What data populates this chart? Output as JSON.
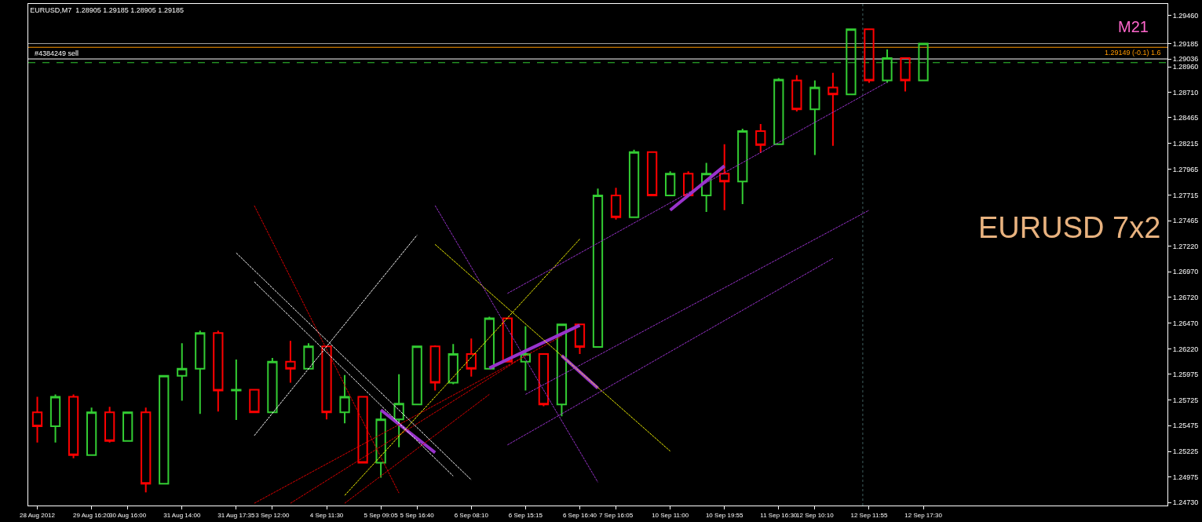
{
  "chart_data": {
    "type": "candlestick",
    "title": "EURUSD,M7  1.28905 1.29185 1.28905 1.29185",
    "categories": [
      "28 Aug 2012",
      null,
      null,
      "29 Aug 16:20",
      null,
      "30 Aug 16:00",
      null,
      null,
      "31 Aug 14:00",
      null,
      null,
      "31 Aug 17:35",
      null,
      "3 Sep 12:00",
      null,
      null,
      "4 Sep 11:30",
      null,
      null,
      "5 Sep 09:05",
      null,
      "5 Sep 16:40",
      null,
      null,
      "6 Sep 08:10",
      null,
      null,
      "6 Sep 15:15",
      null,
      null,
      "6 Sep 16:40",
      null,
      "7 Sep 16:05",
      null,
      null,
      "10 Sep 11:00",
      null,
      null,
      "10 Sep 19:55",
      null,
      null,
      "11 Sep 16:30",
      null,
      "12 Sep 10:10",
      null,
      null,
      "12 Sep 11:55",
      null,
      null,
      "12 Sep 17:30",
      null,
      null,
      null,
      null,
      null,
      null,
      null,
      null,
      null,
      null,
      null,
      null,
      null
    ],
    "ohlc": [
      [
        1.25605,
        1.25756,
        1.25311,
        1.25469
      ],
      [
        1.25469,
        1.25779,
        1.25311,
        1.25756
      ],
      [
        1.25756,
        1.25779,
        1.2516,
        1.2519
      ],
      [
        1.2519,
        1.2565,
        1.25183,
        1.25605
      ],
      [
        1.25605,
        1.25658,
        1.25311,
        1.25326
      ],
      [
        1.25326,
        1.25605,
        1.25326,
        1.25605
      ],
      [
        1.25605,
        1.2565,
        1.24828,
        1.24911
      ],
      [
        1.24911,
        1.2596,
        1.24911,
        1.2596
      ],
      [
        1.2596,
        1.26276,
        1.25718,
        1.26028
      ],
      [
        1.26028,
        1.26397,
        1.2559,
        1.26375
      ],
      [
        1.26375,
        1.26397,
        1.25613,
        1.25816
      ],
      [
        1.25816,
        1.26118,
        1.2553,
        1.25824
      ],
      [
        1.25824,
        1.25824,
        1.25605,
        1.25605
      ],
      [
        1.25605,
        1.26133,
        1.25605,
        1.26096
      ],
      [
        1.26096,
        1.26299,
        1.25892,
        1.26028
      ],
      [
        1.26028,
        1.26276,
        1.26028,
        1.26246
      ],
      [
        1.26246,
        1.26246,
        1.25537,
        1.25605
      ],
      [
        1.25605,
        1.25967,
        1.25499,
        1.25756
      ],
      [
        1.25756,
        1.25756,
        1.25115,
        1.25115
      ],
      [
        1.25115,
        1.25613,
        1.24971,
        1.25537
      ],
      [
        1.25537,
        1.25975,
        1.25266,
        1.25688
      ],
      [
        1.25681,
        1.26246,
        1.25681,
        1.26246
      ],
      [
        1.26246,
        1.26254,
        1.25816,
        1.25892
      ],
      [
        1.25892,
        1.26269,
        1.25877,
        1.26171
      ],
      [
        1.26171,
        1.26322,
        1.25952,
        1.26028
      ],
      [
        1.26028,
        1.26533,
        1.2602,
        1.26518
      ],
      [
        1.26518,
        1.26518,
        1.26096,
        1.26096
      ],
      [
        1.26096,
        1.26442,
        1.25816,
        1.26171
      ],
      [
        1.26171,
        1.26171,
        1.25665,
        1.25681
      ],
      [
        1.25681,
        1.26458,
        1.25567,
        1.26458
      ],
      [
        1.26458,
        1.26458,
        1.26171,
        1.26239
      ],
      [
        1.26239,
        1.27778,
        1.26239,
        1.2771
      ],
      [
        1.2771,
        1.27785,
        1.27476,
        1.27499
      ],
      [
        1.27499,
        1.28155,
        1.27499,
        1.28132
      ],
      [
        1.28132,
        1.28132,
        1.2771,
        1.2771
      ],
      [
        1.2771,
        1.27944,
        1.2771,
        1.27921
      ],
      [
        1.27921,
        1.27944,
        1.2771,
        1.2771
      ],
      [
        1.2771,
        1.28027,
        1.27551,
        1.27921
      ],
      [
        1.27921,
        1.28208,
        1.27567,
        1.27846
      ],
      [
        1.27846,
        1.28359,
        1.27627,
        1.28336
      ],
      [
        1.28336,
        1.28404,
        1.28125,
        1.282
      ],
      [
        1.28208,
        1.28849,
        1.28208,
        1.28834
      ],
      [
        1.28826,
        1.28879,
        1.28525,
        1.28547
      ],
      [
        1.28547,
        1.28826,
        1.28102,
        1.28759
      ],
      [
        1.28759,
        1.28902,
        1.28193,
        1.28691
      ],
      [
        1.28691,
        1.29332,
        1.28691,
        1.29324
      ],
      [
        1.29324,
        1.29324,
        1.28804,
        1.28826
      ],
      [
        1.28826,
        1.29128,
        1.28804,
        1.29045
      ],
      [
        1.29045,
        1.29045,
        1.28721,
        1.28826
      ],
      [
        1.28826,
        1.29185,
        1.28826,
        1.29185
      ],
      null,
      null,
      null,
      null,
      null,
      null,
      null,
      null,
      null,
      null,
      null,
      null,
      null
    ],
    "colors": [
      "#ff0000",
      "#33cc33",
      "#ff0000",
      "#33cc33",
      "#ff0000",
      "#33cc33",
      "#ff0000",
      "#33cc33",
      "#33cc33",
      "#33cc33",
      "#ff0000",
      "#33cc33",
      "#ff0000",
      "#33cc33",
      "#ff0000",
      "#33cc33",
      "#ff0000",
      "#33cc33",
      "#ff0000",
      "#33cc33",
      "#33cc33",
      "#33cc33",
      "#ff0000",
      "#33cc33",
      "#ff0000",
      "#33cc33",
      "#ff0000",
      "#33cc33",
      "#ff0000",
      "#33cc33",
      "#ff0000",
      "#33cc33",
      "#ff0000",
      "#33cc33",
      "#ff0000",
      "#33cc33",
      "#ff0000",
      "#33cc33",
      "#ff0000",
      "#33cc33",
      "#ff0000",
      "#33cc33",
      "#ff0000",
      "#33cc33",
      "#ff0000",
      "#33cc33",
      "#ff0000",
      "#33cc33",
      "#ff0000",
      "#33cc33",
      null,
      null,
      null,
      null,
      null,
      null,
      null,
      null,
      null,
      null,
      null,
      null,
      null
    ],
    "series": [
      {
        "type": "line",
        "color": "#9933cc",
        "line_style": "solid",
        "values": [
          null,
          null,
          null,
          null,
          null,
          null,
          null,
          null,
          null,
          null,
          null,
          null,
          null,
          null,
          null,
          null,
          null,
          null,
          null,
          1.25628,
          null,
          null,
          1.25213,
          null,
          null,
          null,
          null,
          null,
          null,
          null,
          null,
          null,
          null,
          null,
          null,
          null,
          null,
          null,
          null,
          null,
          null,
          null,
          null,
          null,
          null,
          null,
          null,
          null,
          null,
          null,
          null,
          null,
          null,
          null,
          null,
          null,
          null,
          null,
          null,
          null,
          null,
          null,
          null
        ]
      },
      {
        "type": "line",
        "color": "#9933cc",
        "line_style": "solid",
        "values": [
          null,
          null,
          null,
          null,
          null,
          null,
          null,
          null,
          null,
          null,
          null,
          null,
          null,
          null,
          null,
          null,
          null,
          null,
          null,
          null,
          null,
          null,
          null,
          null,
          null,
          1.26035,
          null,
          null,
          null,
          null,
          1.2645,
          null,
          null,
          null,
          null,
          null,
          null,
          null,
          null,
          null,
          null,
          null,
          null,
          null,
          null,
          null,
          null,
          null,
          null,
          null,
          null,
          null,
          null,
          null,
          null,
          null,
          null,
          null,
          null,
          null,
          null,
          null,
          null
        ]
      },
      {
        "type": "line",
        "color": "#9933cc",
        "line_style": "solid",
        "values": [
          null,
          null,
          null,
          null,
          null,
          null,
          null,
          null,
          null,
          null,
          null,
          null,
          null,
          null,
          null,
          null,
          null,
          null,
          null,
          null,
          null,
          null,
          null,
          null,
          null,
          null,
          null,
          null,
          null,
          1.26156,
          null,
          1.25839,
          null,
          null,
          null,
          null,
          null,
          null,
          null,
          null,
          null,
          null,
          null,
          null,
          null,
          null,
          null,
          null,
          null,
          null,
          null,
          null,
          null,
          null,
          null,
          null,
          null,
          null,
          null,
          null,
          null,
          null,
          null
        ]
      },
      {
        "type": "line",
        "color": "#9933cc",
        "line_style": "solid",
        "values": [
          null,
          null,
          null,
          null,
          null,
          null,
          null,
          null,
          null,
          null,
          null,
          null,
          null,
          null,
          null,
          null,
          null,
          null,
          null,
          null,
          null,
          null,
          null,
          null,
          null,
          null,
          null,
          null,
          null,
          null,
          null,
          null,
          null,
          null,
          null,
          1.27567,
          null,
          null,
          1.27997,
          null,
          null,
          null,
          null,
          null,
          null,
          null,
          null,
          null,
          null,
          null,
          null,
          null,
          null,
          null,
          null,
          null,
          null,
          null,
          null,
          null,
          null,
          null,
          null
        ]
      },
      {
        "type": "line",
        "color": "#dd0000",
        "line_style": "dashed",
        "values": [
          null,
          null,
          null,
          null,
          null,
          null,
          null,
          null,
          null,
          null,
          null,
          null,
          1.27612,
          null,
          null,
          null,
          null,
          null,
          null,
          null,
          1.24821,
          null,
          null,
          null,
          null,
          null,
          null,
          null,
          null,
          null,
          null,
          null,
          null,
          null,
          null,
          null,
          null,
          null,
          null,
          null,
          null,
          null,
          null,
          null,
          null,
          null,
          null,
          null,
          null,
          null,
          null,
          null,
          null,
          null,
          null,
          null,
          null,
          null,
          null,
          null,
          null,
          null,
          null
        ]
      },
      {
        "type": "line",
        "color": "#dd0000",
        "line_style": "dashed",
        "values": [
          null,
          null,
          null,
          null,
          null,
          null,
          null,
          null,
          null,
          null,
          null,
          null,
          1.24722,
          null,
          null,
          null,
          null,
          null,
          null,
          null,
          null,
          null,
          null,
          null,
          null,
          null,
          null,
          null,
          null,
          1.26344,
          null,
          null,
          null,
          null,
          null,
          null,
          null,
          null,
          null,
          null,
          null,
          null,
          null,
          null,
          null,
          null,
          null,
          null,
          null,
          null,
          null,
          null,
          null,
          null,
          null,
          null,
          null,
          null,
          null,
          null,
          null,
          null,
          null
        ]
      },
      {
        "type": "line",
        "color": "#dd0000",
        "line_style": "dashed",
        "values": [
          null,
          null,
          null,
          null,
          null,
          null,
          null,
          null,
          null,
          null,
          null,
          null,
          null,
          null,
          1.24722,
          null,
          null,
          null,
          null,
          null,
          null,
          null,
          null,
          null,
          null,
          null,
          null,
          1.26156,
          null,
          null,
          null,
          null,
          null,
          null,
          null,
          null,
          null,
          null,
          null,
          null,
          null,
          null,
          null,
          null,
          null,
          null,
          null,
          null,
          null,
          null,
          null,
          null,
          null,
          null,
          null,
          null,
          null,
          null,
          null,
          null,
          null,
          null,
          null
        ]
      },
      {
        "type": "line",
        "color": "#dd0000",
        "line_style": "dashed",
        "values": [
          null,
          null,
          null,
          null,
          null,
          null,
          null,
          null,
          null,
          null,
          null,
          null,
          null,
          null,
          null,
          null,
          null,
          1.24722,
          null,
          null,
          null,
          null,
          null,
          null,
          null,
          1.25779,
          null,
          null,
          null,
          null,
          null,
          null,
          null,
          null,
          null,
          null,
          null,
          null,
          null,
          null,
          null,
          null,
          null,
          null,
          null,
          null,
          null,
          null,
          null,
          null,
          null,
          null,
          null,
          null,
          null,
          null,
          null,
          null,
          null,
          null,
          null,
          null,
          null
        ]
      },
      {
        "type": "line",
        "color": "#ffffff",
        "line_style": "dashed",
        "values": [
          null,
          null,
          null,
          null,
          null,
          null,
          null,
          null,
          null,
          null,
          null,
          1.27152,
          null,
          null,
          null,
          null,
          null,
          null,
          null,
          null,
          null,
          null,
          null,
          null,
          1.24949,
          null,
          null,
          null,
          null,
          null,
          null,
          null,
          null,
          null,
          null,
          null,
          null,
          null,
          null,
          null,
          null,
          null,
          null,
          null,
          null,
          null,
          null,
          null,
          null,
          null,
          null,
          null,
          null,
          null,
          null,
          null,
          null,
          null,
          null,
          null,
          null,
          null,
          null
        ]
      },
      {
        "type": "line",
        "color": "#ffffff",
        "line_style": "dashed",
        "values": [
          null,
          null,
          null,
          null,
          null,
          null,
          null,
          null,
          null,
          null,
          null,
          null,
          1.26872,
          null,
          null,
          null,
          null,
          null,
          null,
          null,
          null,
          null,
          null,
          1.24986,
          null,
          null,
          null,
          null,
          null,
          null,
          null,
          null,
          null,
          null,
          null,
          null,
          null,
          null,
          null,
          null,
          null,
          null,
          null,
          null,
          null,
          null,
          null,
          null,
          null,
          null,
          null,
          null,
          null,
          null,
          null,
          null,
          null,
          null,
          null,
          null,
          null,
          null,
          null
        ]
      },
      {
        "type": "line",
        "color": "#ffffff",
        "line_style": "dashed",
        "values": [
          null,
          null,
          null,
          null,
          null,
          null,
          null,
          null,
          null,
          null,
          null,
          null,
          1.25379,
          null,
          null,
          null,
          null,
          null,
          null,
          null,
          null,
          1.27325,
          null,
          null,
          null,
          null,
          null,
          null,
          null,
          null,
          null,
          null,
          null,
          null,
          null,
          null,
          null,
          null,
          null,
          null,
          null,
          null,
          null,
          null,
          null,
          null,
          null,
          null,
          null,
          null,
          null,
          null,
          null,
          null,
          null,
          null,
          null,
          null,
          null,
          null,
          null,
          null,
          null
        ]
      },
      {
        "type": "line",
        "color": "#ffff00",
        "line_style": "dashed",
        "values": [
          null,
          null,
          null,
          null,
          null,
          null,
          null,
          null,
          null,
          null,
          null,
          null,
          null,
          null,
          null,
          null,
          null,
          null,
          null,
          null,
          null,
          null,
          1.27235,
          null,
          null,
          null,
          null,
          null,
          null,
          null,
          null,
          null,
          null,
          null,
          null,
          1.25228,
          null,
          null,
          null,
          null,
          null,
          null,
          null,
          null,
          null,
          null,
          null,
          null,
          null,
          null,
          null,
          null,
          null,
          null,
          null,
          null,
          null,
          null,
          null,
          null,
          null,
          null,
          null
        ]
      },
      {
        "type": "line",
        "color": "#ffff00",
        "line_style": "dashed",
        "values": [
          null,
          null,
          null,
          null,
          null,
          null,
          null,
          null,
          null,
          null,
          null,
          null,
          null,
          null,
          null,
          null,
          null,
          1.24798,
          null,
          null,
          null,
          null,
          null,
          null,
          null,
          null,
          null,
          null,
          null,
          null,
          1.27287,
          null,
          null,
          null,
          null,
          null,
          null,
          null,
          null,
          null,
          null,
          null,
          null,
          null,
          null,
          null,
          null,
          null,
          null,
          null,
          null,
          null,
          null,
          null,
          null,
          null,
          null,
          null,
          null,
          null,
          null,
          null,
          null
        ]
      },
      {
        "type": "line",
        "color": "#9933cc",
        "line_style": "dashed",
        "values": [
          null,
          null,
          null,
          null,
          null,
          null,
          null,
          null,
          null,
          null,
          null,
          null,
          null,
          null,
          null,
          null,
          null,
          null,
          null,
          null,
          null,
          null,
          1.27612,
          null,
          null,
          null,
          null,
          null,
          null,
          null,
          null,
          1.24926,
          null,
          null,
          null,
          null,
          null,
          null,
          null,
          null,
          null,
          null,
          null,
          null,
          null,
          null,
          null,
          null,
          null,
          null,
          null,
          null,
          null,
          null,
          null,
          null,
          null,
          null,
          null,
          null,
          null,
          null,
          null
        ]
      },
      {
        "type": "line",
        "color": "#9933cc",
        "line_style": "dashed",
        "values": [
          null,
          null,
          null,
          null,
          null,
          null,
          null,
          null,
          null,
          null,
          null,
          null,
          null,
          null,
          null,
          null,
          null,
          null,
          null,
          null,
          null,
          null,
          null,
          null,
          null,
          null,
          1.26759,
          null,
          null,
          null,
          null,
          null,
          null,
          null,
          null,
          null,
          null,
          null,
          null,
          null,
          null,
          null,
          null,
          null,
          null,
          null,
          null,
          1.28811,
          null,
          null,
          null,
          null,
          null,
          null,
          null,
          null,
          null,
          null,
          null,
          null,
          null,
          null,
          null
        ]
      },
      {
        "type": "line",
        "color": "#9933cc",
        "line_style": "dashed",
        "values": [
          null,
          null,
          null,
          null,
          null,
          null,
          null,
          null,
          null,
          null,
          null,
          null,
          null,
          null,
          null,
          null,
          null,
          null,
          null,
          null,
          null,
          null,
          null,
          null,
          null,
          null,
          null,
          1.25779,
          null,
          null,
          null,
          null,
          null,
          null,
          null,
          null,
          null,
          null,
          null,
          null,
          null,
          null,
          null,
          null,
          null,
          null,
          1.27567,
          null,
          null,
          null,
          null,
          null,
          null,
          null,
          null,
          null,
          null,
          null,
          null,
          null,
          null,
          null,
          null
        ]
      },
      {
        "type": "line",
        "color": "#9933cc",
        "line_style": "dashed",
        "values": [
          null,
          null,
          null,
          null,
          null,
          null,
          null,
          null,
          null,
          null,
          null,
          null,
          null,
          null,
          null,
          null,
          null,
          null,
          null,
          null,
          null,
          null,
          null,
          null,
          null,
          null,
          1.25288,
          null,
          null,
          null,
          null,
          null,
          null,
          null,
          null,
          null,
          null,
          null,
          null,
          null,
          null,
          null,
          null,
          null,
          1.27099,
          null,
          null,
          null,
          null,
          null,
          null,
          null,
          null,
          null,
          null,
          null,
          null,
          null,
          null,
          null,
          null,
          null,
          null
        ]
      }
    ],
    "ylim": [
      1.247,
      1.2957
    ],
    "yticks": [
      {
        "value": 1.2473,
        "label": "1.24730"
      },
      {
        "value": 1.24975,
        "label": "1.24975"
      },
      {
        "value": 1.25225,
        "label": "1.25225"
      },
      {
        "value": 1.25475,
        "label": "1.25475"
      },
      {
        "value": 1.25725,
        "label": "1.25725"
      },
      {
        "value": 1.25975,
        "label": "1.25975"
      },
      {
        "value": 1.2622,
        "label": "1.26220"
      },
      {
        "value": 1.2647,
        "label": "1.26470"
      },
      {
        "value": 1.2672,
        "label": "1.26720"
      },
      {
        "value": 1.2697,
        "label": "1.26970"
      },
      {
        "value": 1.2722,
        "label": "1.27220"
      },
      {
        "value": 1.27465,
        "label": "1.27465"
      },
      {
        "value": 1.27715,
        "label": "1.27715"
      },
      {
        "value": 1.27965,
        "label": "1.27965"
      },
      {
        "value": 1.28215,
        "label": "1.28215"
      },
      {
        "value": 1.28465,
        "label": "1.28465"
      },
      {
        "value": 1.2871,
        "label": "1.28710"
      },
      {
        "value": 1.2896,
        "label": "1.28960"
      },
      {
        "value": 1.29036,
        "label": "1.29036"
      },
      {
        "value": 1.29185,
        "label": "1.29185"
      },
      {
        "value": 1.2946,
        "label": "1.29460"
      }
    ],
    "ref_lines": [
      {
        "axis": "y",
        "value": 1.29036,
        "label": "#4384249 sell",
        "color": "#ffffff",
        "line_style": "solid"
      },
      {
        "axis": "y",
        "value": 1.29149,
        "label": "1.29149 (-0.1) 1.6",
        "color": "#ff9900",
        "line_style": "solid"
      },
      {
        "axis": "y",
        "value": 1.29185,
        "color": "#a0a0a0",
        "line_style": "solid"
      },
      {
        "axis": "y",
        "value": 1.29,
        "color": "#33cc33",
        "line_style": "dashed"
      },
      {
        "axis": "x",
        "value": "12 Sep 11:55",
        "color": "#3f5f5f",
        "line_style": "dotted"
      }
    ],
    "annotations": [
      "M21",
      "EURUSD 7x2"
    ],
    "grid": false
  }
}
